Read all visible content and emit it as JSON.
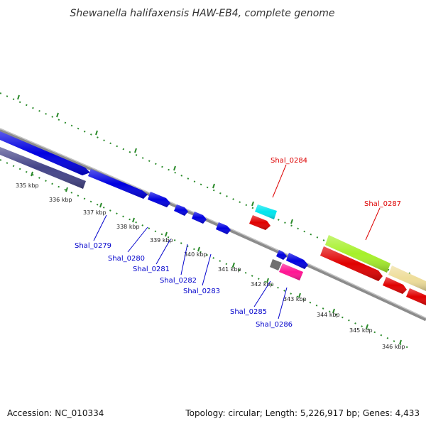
{
  "title": "Shewanella halifaxensis HAW-EB4, complete genome",
  "footer": {
    "accession": "Accession: NC_010334",
    "summary": "Topology: circular; Length: 5,226,917 bp; Genes: 4,433"
  },
  "scale_labels": [
    "335 kbp",
    "336 kbp",
    "337 kbp",
    "338 kbp",
    "339 kbp",
    "340 kbp",
    "341 kbp",
    "342 kbp",
    "343 kbp",
    "344 kbp",
    "345 kbp",
    "346 kbp"
  ],
  "gene_labels": {
    "shal_0279": "Shal_0279",
    "shal_0280": "Shal_0280",
    "shal_0281": "Shal_0281",
    "shal_0282": "Shal_0282",
    "shal_0283": "Shal_0283",
    "shal_0284": "Shal_0284",
    "shal_0285": "Shal_0285",
    "shal_0286": "Shal_0286",
    "shal_0287": "Shal_0287"
  },
  "colors": {
    "backbone": "#8c8c8c",
    "tick": "#2a8a2a",
    "forward_cds": "#0000e0",
    "reverse_cds": "#e00000",
    "rna": "#444488",
    "cyan_feature": "#00e5ee",
    "pink_feature": "#ff1493",
    "green_feature": "#a6f02a",
    "khaki_feature": "#eedd99",
    "grey_feature": "#707070",
    "label_forward": "#0000cc",
    "label_reverse": "#dd0000"
  }
}
